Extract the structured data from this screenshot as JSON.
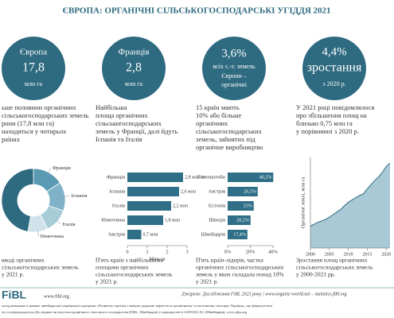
{
  "title": "ЄВРОПА: ОРГАНІЧНІ СІЛЬСЬКОГОСПОДАРСЬКІ УГІДДЯ 2021",
  "highlights": [
    [
      "Європа",
      "17,8",
      "млн га"
    ],
    [
      "Франція",
      "2,8",
      "млн га"
    ],
    [
      "3,6%",
      "всіх с.-г. земель",
      "Європи –",
      "органічні"
    ],
    [
      "4,4%",
      "зростання",
      "з 2020 р."
    ]
  ],
  "descriptions": [
    [
      "ьше половини органічних",
      "сільськогосподарських земель",
      "ропи (17,8 млн га)",
      "находяться у чотирьох",
      "раїнах"
    ],
    [
      "Найбільша",
      "площа органічних",
      "сільськогосподарських",
      "земель у Франції, далі йдуть",
      "Іспанія та Італія"
    ],
    [
      "15 країн мають",
      "10% або більше",
      "органічних",
      "сільськогосподарських",
      "земель, зайнятих під",
      "органічне виробництво"
    ],
    [
      "У 2021 році повідомлялося",
      "про збільшення площ на",
      "близько 0,75 млн га",
      "у порівнянні з 2020 р."
    ]
  ],
  "captions": [
    [
      "вводі органічних",
      "сільськогосподарських земель",
      "у 2021 р."
    ],
    [
      "П'ять країн з найбільшими",
      "площами органічних",
      "сільськогосподарських земель",
      "у 2021 р."
    ],
    [
      "П'ять країн-лідерів, частка",
      "органічних сільськогосподарських",
      "земель у яких складала понад 10%",
      "у 2021 р."
    ],
    [
      "Зростання площ органічних",
      "сільськогосподарських земель",
      "у 2000-2021 рр."
    ]
  ],
  "footer": {
    "logo": "FiBL",
    "url": "www.fibl.org",
    "source": "Джерело: Дослідження FiBL 2023 року | www.organic-world.net – statistics.fibl.org",
    "note": [
      "склад виконано в рамках швейцарсько-української програми «Розвиток торгівлі з вищою доданою вартістю в органічному та молочному секторах України», що фінансується",
      "ти та перекладається Дослідним інститутом органічного сільського господарства (FiBL, Швейцарія) у партнерстві із SAFOSO AG (Швейцарія), www.qftp.org"
    ]
  },
  "chart_data": [
    {
      "type": "pie",
      "categories": [
        "Франція",
        "Іспанія",
        "Італія",
        "Німеччина",
        null
      ],
      "values": [
        2.8,
        2.6,
        2.2,
        1.8,
        8.4
      ],
      "colors": [
        "#5a9bb3",
        "#7fb2c6",
        "#a8cbd8",
        "#cfe2e9",
        "#2e6a80"
      ]
    },
    {
      "type": "bar",
      "categories": [
        "Франція",
        "Іспанія",
        "Італія",
        "Німеччина",
        "Австрія"
      ],
      "values": [
        2.8,
        2.6,
        2.2,
        1.8,
        0.7
      ],
      "value_labels": [
        "2,8 млн га",
        "2,6 млн",
        "2,2 млн",
        "1,8 млн",
        "0,7 млн"
      ],
      "color": "#2f6f87",
      "xlim": [
        0,
        3
      ],
      "xticks": [
        0,
        1,
        2,
        3
      ],
      "xlabel": "Млн га",
      "value_label_position": "outside"
    },
    {
      "type": "bar",
      "categories": [
        "Ліхтенштейн",
        "Австрія",
        "Естонія",
        "Швеція",
        "Швейцарія"
      ],
      "values": [
        40.2,
        26.5,
        23,
        20.2,
        17.4
      ],
      "value_labels": [
        "40,2%",
        "26,5%",
        "23%",
        "20,2%",
        "17,4%"
      ],
      "color": "#2f6f87",
      "xlim": [
        0,
        40
      ],
      "xticks": [
        {
          "value": 0,
          "label": "0%"
        },
        {
          "value": 20,
          "label": "20%"
        },
        {
          "value": 40,
          "label": "40%"
        }
      ],
      "value_label_position": "inside"
    },
    {
      "type": "area",
      "x": [
        2000,
        2001,
        2002,
        2003,
        2004,
        2005,
        2006,
        2007,
        2008,
        2009,
        2010,
        2011,
        2012,
        2013,
        2014,
        2015,
        2016,
        2017,
        2018,
        2019,
        2020,
        2021
      ],
      "values": [
        4.6,
        5.0,
        5.4,
        5.7,
        6.0,
        6.5,
        7.0,
        7.6,
        8.1,
        8.9,
        9.6,
        10.1,
        10.6,
        11.0,
        11.4,
        12.4,
        13.3,
        14.2,
        14.9,
        15.9,
        17.1,
        17.8
      ],
      "color": "#a9c9d6",
      "line_color": "#2e6a80",
      "xlim": [
        2000,
        2021
      ],
      "xticks": [
        2000,
        2005,
        2010,
        2015,
        2020
      ],
      "ylim": [
        0,
        19
      ],
      "ylabel": "Органічні землі, млн га"
    }
  ]
}
